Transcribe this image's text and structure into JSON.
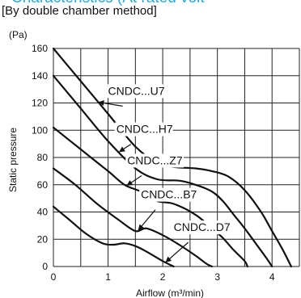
{
  "header": {
    "title": "Characteristics (At rated volt",
    "subtitle": "[By double chamber method]"
  },
  "chart_data": {
    "type": "line",
    "xlabel": "Airflow (m³/min)",
    "ylabel": "Static pressure",
    "yunit": "(Pa)",
    "xlim": [
      0,
      4.5
    ],
    "ylim": [
      0,
      160
    ],
    "xticks": [
      0,
      1,
      2,
      3,
      4
    ],
    "yticks": [
      0,
      20,
      40,
      60,
      80,
      100,
      120,
      140,
      160
    ],
    "grid": true,
    "series": [
      {
        "name": "CNDC...U7",
        "x": [
          0,
          0.5,
          1.0,
          1.5,
          1.9,
          2.2,
          2.6,
          2.9,
          3.2,
          3.5,
          3.8,
          4.0,
          4.2,
          4.35
        ],
        "y": [
          160,
          136,
          112,
          88,
          76,
          73,
          72,
          70,
          66,
          56,
          40,
          26,
          12,
          0
        ]
      },
      {
        "name": "CNDC...H7",
        "x": [
          0,
          0.5,
          1.0,
          1.5,
          1.9,
          2.3,
          2.6,
          2.9,
          3.1,
          3.3,
          3.5,
          3.7,
          3.9,
          4.0
        ],
        "y": [
          140,
          116,
          92,
          72,
          64,
          63,
          60,
          55,
          48,
          38,
          28,
          17,
          6,
          0
        ]
      },
      {
        "name": "CNDC...Z7",
        "x": [
          0,
          0.5,
          1.0,
          1.3,
          1.6,
          1.9,
          2.2,
          2.6,
          2.9,
          3.1,
          3.3,
          3.5,
          3.55
        ],
        "y": [
          102,
          86,
          70,
          60,
          55,
          48,
          46,
          38,
          28,
          21,
          12,
          4,
          0
        ]
      },
      {
        "name": "CNDC...B7",
        "x": [
          0,
          0.4,
          0.8,
          1.2,
          1.5,
          1.7,
          2.0,
          2.3,
          2.6,
          2.8,
          2.9
        ],
        "y": [
          72,
          60,
          46,
          34,
          26,
          28,
          23,
          16,
          8,
          2,
          0
        ]
      },
      {
        "name": "CNDC...D7",
        "x": [
          0,
          0.3,
          0.6,
          0.9,
          1.1,
          1.3,
          1.5,
          1.7,
          2.0,
          2.2
        ],
        "y": [
          44,
          34,
          24,
          17,
          16,
          17,
          15,
          11,
          4,
          0
        ]
      }
    ],
    "annotations": [
      {
        "text": "CNDC...U7",
        "x": 1.0,
        "y": 126
      },
      {
        "text": "CNDC...H7",
        "x": 1.15,
        "y": 98
      },
      {
        "text": "CNDC...Z7",
        "x": 1.35,
        "y": 75
      },
      {
        "text": "CNDC...B7",
        "x": 1.6,
        "y": 50
      },
      {
        "text": "CNDC...D7",
        "x": 2.2,
        "y": 26
      }
    ]
  }
}
